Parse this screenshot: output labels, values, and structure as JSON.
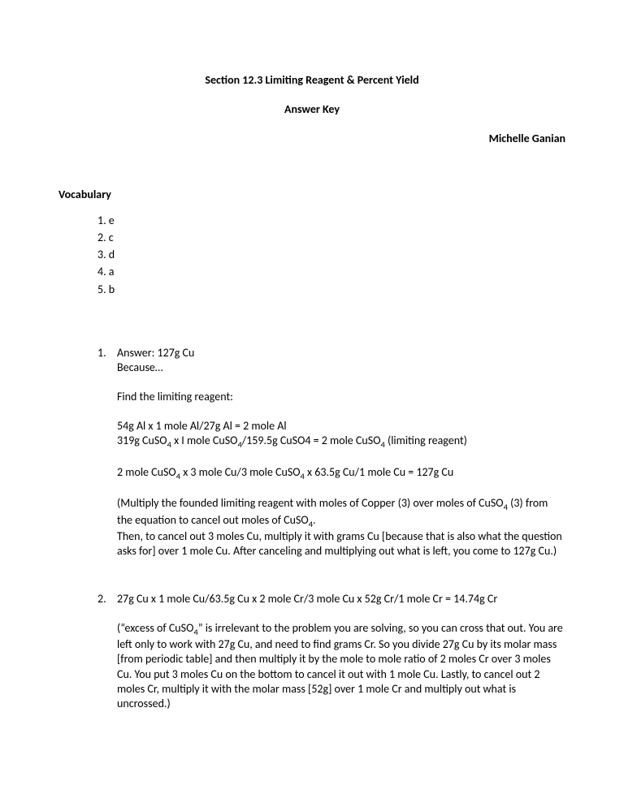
{
  "title": "Section 12.3 Limiting Reagent & Percent Yield",
  "subtitle": "Answer Key",
  "author": "Michelle Ganian",
  "vocab": {
    "heading": "Vocabulary",
    "items": [
      {
        "num": "1.",
        "ans": "e"
      },
      {
        "num": "2.",
        "ans": "c"
      },
      {
        "num": "3.",
        "ans": "d"
      },
      {
        "num": "4.",
        "ans": "a"
      },
      {
        "num": "5.",
        "ans": "b"
      }
    ]
  },
  "answers": [
    {
      "num": "1.",
      "lines": [
        {
          "text": "Answer:  127g Cu",
          "tight": true
        },
        {
          "text": "Because…",
          "tight": false
        },
        {
          "text": "Find the limiting reagent:",
          "tight": false
        },
        {
          "text": "54g Al x 1 mole Al/27g Al = 2 mole Al",
          "tight": true
        },
        {
          "html": "319g CuSO<sub>4</sub> x I mole CuSO<sub>4</sub>/159.5g CuSO4 = 2 mole CuSO<sub>4</sub> (limiting reagent)",
          "tight": false
        },
        {
          "html": "2 mole CuSO<sub>4</sub> x 3 mole Cu/3 mole CuSO<sub>4</sub> x 63.5g Cu/1 mole Cu = 127g Cu",
          "tight": false
        },
        {
          "html": "(Multiply the founded limiting reagent with moles of Copper (3) over moles of CuSO<sub>4</sub> (3) from the equation to cancel out moles of CuSO<sub>4</sub>.",
          "tight": true
        },
        {
          "text": "Then, to cancel out 3 moles Cu, multiply it with grams Cu [because that is also what the question asks for] over 1 mole Cu. After canceling and multiplying out what is left, you come to 127g Cu.)",
          "tight": false
        }
      ]
    },
    {
      "num": "2.",
      "lines": [
        {
          "text": "27g Cu x 1 mole Cu/63.5g Cu x 2 mole Cr/3 mole Cu x 52g Cr/1 mole Cr = 14.74g Cr",
          "tight": false
        },
        {
          "html": "(“excess of CuSO<sub>4</sub>” is irrelevant to the problem you are solving, so you can cross that out. You are left only to work with 27g Cu, and need to find grams Cr. So you divide 27g Cu by its molar mass [from periodic table] and then multiply it by the mole to mole ratio of 2 moles Cr over 3 moles Cu. You put 3 moles Cu on the bottom to cancel it out with 1 mole Cu. Lastly, to cancel out 2 moles Cr, multiply it with the molar mass [52g] over 1 mole Cr and multiply out what is uncrossed.)",
          "tight": false
        }
      ]
    }
  ]
}
